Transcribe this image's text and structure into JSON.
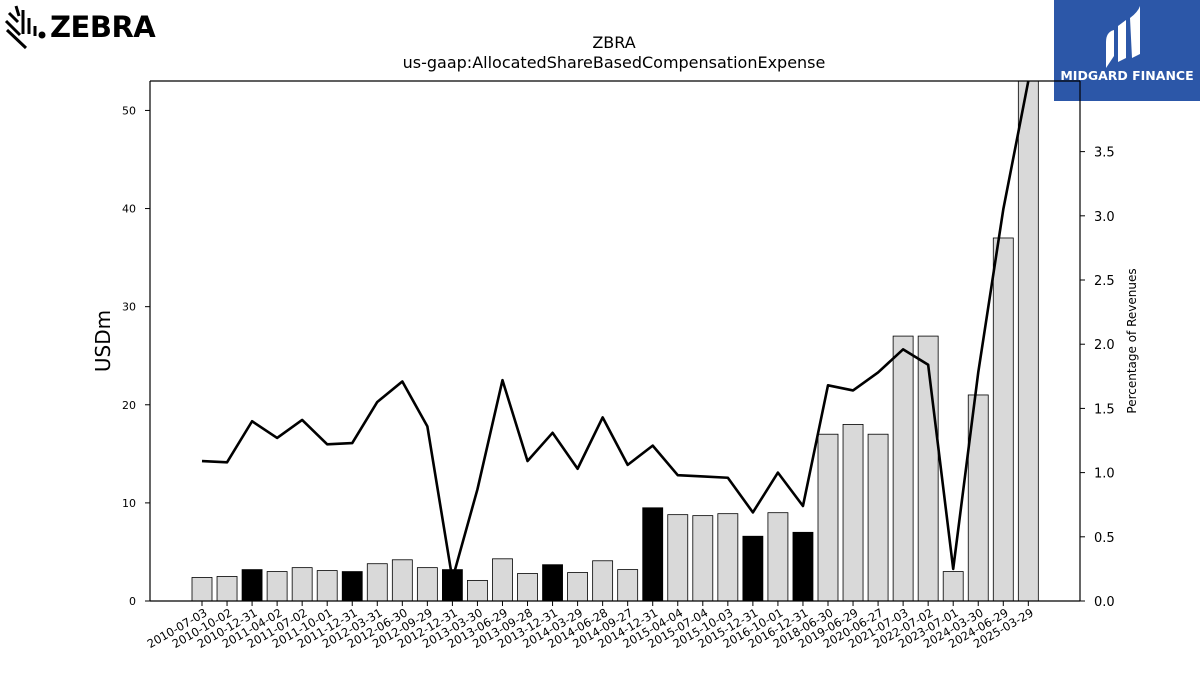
{
  "branding": {
    "company_logo_text": "ZEBRA",
    "badge_text": "MIDGARD FINANCE",
    "badge_color": "#2c57a8"
  },
  "chart_data": {
    "type": "bar",
    "title": "ZBRA",
    "subtitle": "us-gaap:AllocatedShareBasedCompensationExpense",
    "ylabel": "USDm",
    "y2label": "Percentage of Revenues",
    "ylim": [
      0,
      53
    ],
    "y2lim": [
      0,
      4.05
    ],
    "yticks": [
      0,
      10,
      20,
      30,
      40,
      50
    ],
    "y2ticks": [
      "0.0",
      "0.5",
      "1.0",
      "1.5",
      "2.0",
      "2.5",
      "3.0",
      "3.5"
    ],
    "grid": false,
    "categories": [
      "2010-07-03",
      "2010-10-02",
      "2010-12-31",
      "2011-04-02",
      "2011-07-02",
      "2011-10-01",
      "2011-12-31",
      "2012-03-31",
      "2012-06-30",
      "2012-09-29",
      "2012-12-31",
      "2013-03-30",
      "2013-06-29",
      "2013-09-28",
      "2013-12-31",
      "2014-03-29",
      "2014-06-28",
      "2014-09-27",
      "2014-12-31",
      "2015-04-04",
      "2015-07-04",
      "2015-10-03",
      "2015-12-31",
      "2016-10-01",
      "2016-12-31",
      "2018-06-30",
      "2019-06-29",
      "2020-06-27",
      "2021-07-03",
      "2022-07-02",
      "2023-07-01",
      "2024-03-30",
      "2024-06-29",
      "2025-03-29"
    ],
    "series": [
      {
        "kind": "bar",
        "values": [
          2.4,
          2.5,
          3.2,
          3.0,
          3.4,
          3.1,
          3.0,
          3.8,
          4.2,
          3.4,
          3.2,
          2.1,
          4.3,
          2.8,
          3.7,
          2.9,
          4.1,
          3.2,
          9.5,
          8.8,
          8.7,
          8.9,
          6.6,
          9.0,
          7.0,
          17.0,
          18.0,
          17.0,
          27.0,
          27.0,
          3.0,
          21.0,
          37.0,
          53.0
        ],
        "highlight": [
          false,
          false,
          true,
          false,
          false,
          false,
          true,
          false,
          false,
          false,
          true,
          false,
          false,
          false,
          true,
          false,
          false,
          false,
          true,
          false,
          false,
          false,
          true,
          false,
          true,
          false,
          false,
          false,
          false,
          false,
          false,
          false,
          false,
          false
        ],
        "color": "#d9d9d9",
        "highlight_color": "#000000"
      },
      {
        "kind": "line",
        "axis": "right",
        "values": [
          1.09,
          1.08,
          1.4,
          1.27,
          1.41,
          1.22,
          1.23,
          1.55,
          1.71,
          1.36,
          0.17,
          0.87,
          1.72,
          1.09,
          1.31,
          1.03,
          1.43,
          1.06,
          1.21,
          0.98,
          0.97,
          0.96,
          0.69,
          1.0,
          0.74,
          1.68,
          1.64,
          1.78,
          1.96,
          1.84,
          0.25,
          1.78,
          3.05,
          4.05
        ],
        "color": "#000000"
      }
    ]
  }
}
